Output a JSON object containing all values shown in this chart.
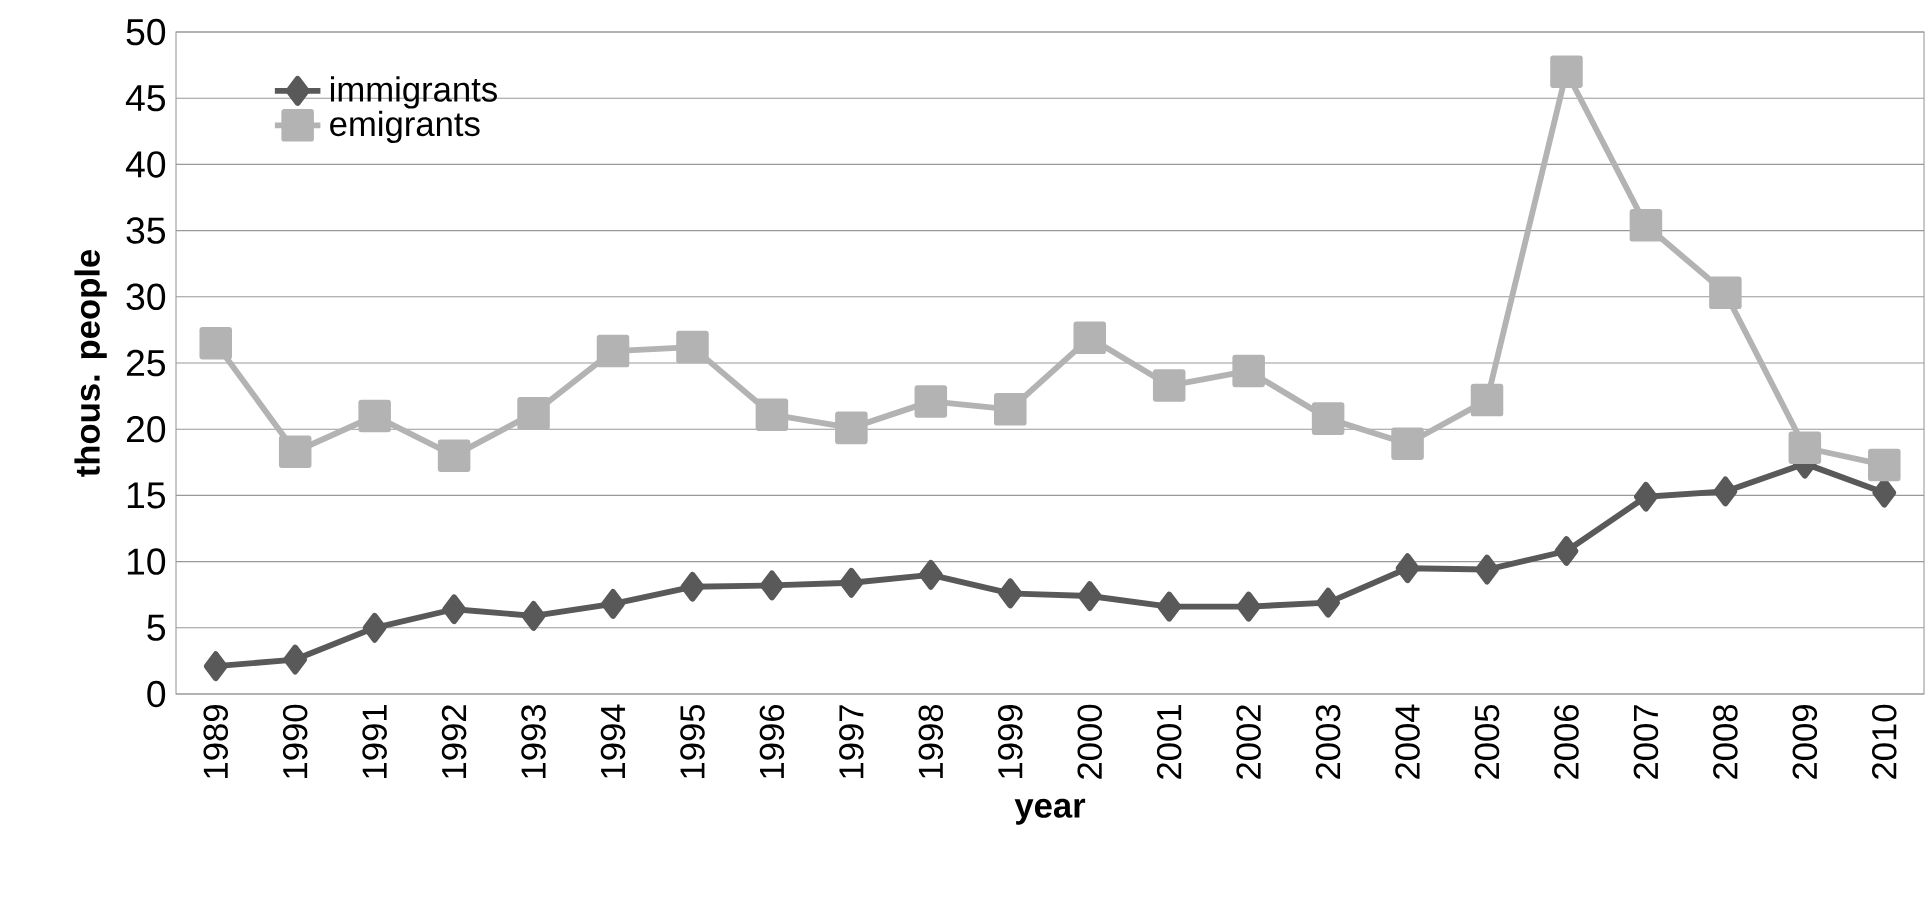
{
  "chart_data": {
    "type": "line",
    "xlabel": "year",
    "ylabel": "thous. people",
    "categories": [
      "1989",
      "1990",
      "1991",
      "1992",
      "1993",
      "1994",
      "1995",
      "1996",
      "1997",
      "1998",
      "1999",
      "2000",
      "2001",
      "2002",
      "2003",
      "2004",
      "2005",
      "2006",
      "2007",
      "2008",
      "2009",
      "2010"
    ],
    "series": [
      {
        "name": "immigrants",
        "color": "#595959",
        "marker": "diamond",
        "values": [
          2.1,
          2.6,
          5.0,
          6.4,
          5.9,
          6.8,
          8.1,
          8.2,
          8.4,
          9.0,
          7.6,
          7.4,
          6.6,
          6.6,
          6.9,
          9.5,
          9.4,
          10.8,
          14.9,
          15.3,
          17.4,
          15.2
        ]
      },
      {
        "name": "emigrants",
        "color": "#b3b3b3",
        "marker": "square",
        "values": [
          26.5,
          18.3,
          21.0,
          18.0,
          21.2,
          25.9,
          26.2,
          21.1,
          20.1,
          22.1,
          21.5,
          26.9,
          23.3,
          24.4,
          20.8,
          18.9,
          22.2,
          47.0,
          35.4,
          30.3,
          18.6,
          17.3
        ]
      }
    ],
    "ylim": [
      0,
      50
    ],
    "yticks": [
      0,
      5,
      10,
      15,
      20,
      25,
      30,
      35,
      40,
      45,
      50
    ],
    "grid": "y",
    "legend": "top left",
    "line_style": "solid"
  }
}
